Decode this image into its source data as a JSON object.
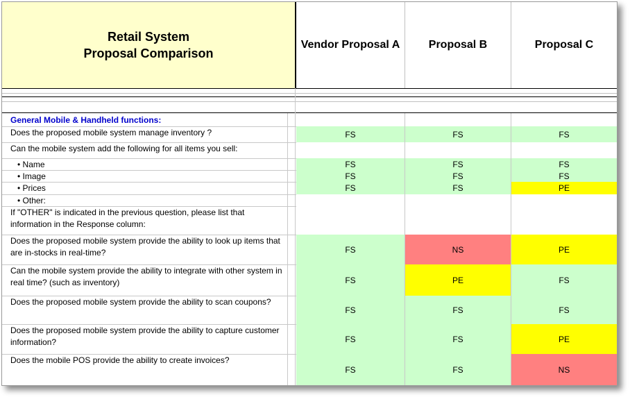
{
  "header": {
    "title_line1": "Retail System",
    "title_line2": "Proposal  Comparison",
    "col_a": "Vendor Proposal A",
    "col_b": "Proposal B",
    "col_c": "Proposal C"
  },
  "rows": [
    {
      "q": "General Mobile & Handheld functions:",
      "section": true
    },
    {
      "q": "Does the proposed mobile system manage inventory ?",
      "a": "FS",
      "b": "FS",
      "c": "FS"
    },
    {
      "q": "Can the mobile system add the following for all items you sell:"
    },
    {
      "q": "• Name",
      "a": "FS",
      "b": "FS",
      "c": "FS"
    },
    {
      "q": "• Image",
      "a": "FS",
      "b": "FS",
      "c": "FS"
    },
    {
      "q": "• Prices",
      "a": "FS",
      "b": "FS",
      "c": "PE"
    },
    {
      "q": "• Other:"
    },
    {
      "q": "If \"OTHER\" is indicated in the previous question, please list that information in the Response column:"
    },
    {
      "q": "Does the proposed mobile system provide the ability to look up items that are in-stocks in real-time?",
      "a": "FS",
      "b": "NS",
      "c": "PE"
    },
    {
      "q": "Can the mobile system provide the ability to integrate with other system in real time? (such as inventory)",
      "a": "FS",
      "b": "PE",
      "c": "FS"
    },
    {
      "q": "Does the proposed mobile system provide the ability to scan coupons?",
      "a": "FS",
      "b": "FS",
      "c": "FS"
    },
    {
      "q": "Does the proposed mobile system provide the ability to capture customer information?",
      "a": "FS",
      "b": "FS",
      "c": "PE"
    },
    {
      "q": "Does the mobile POS provide the ability to create invoices?",
      "a": "FS",
      "b": "FS",
      "c": "NS"
    }
  ]
}
